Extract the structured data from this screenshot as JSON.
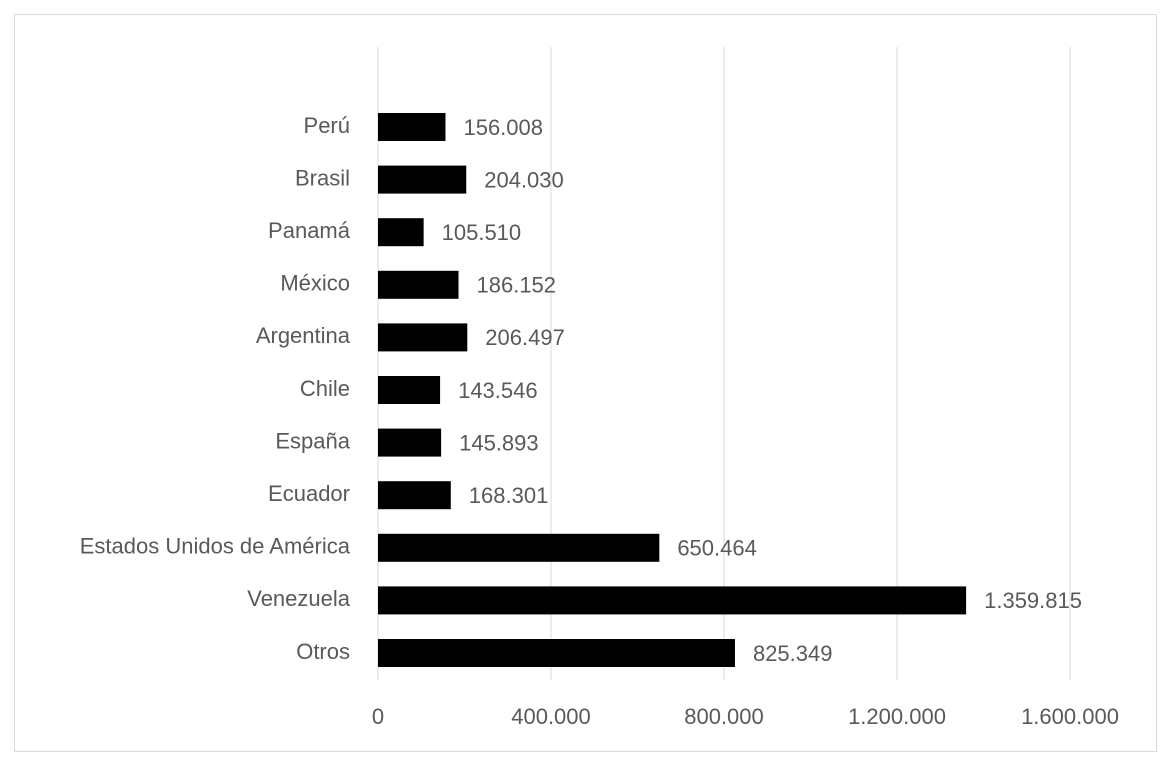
{
  "chart_data": {
    "type": "hbar",
    "categories": [
      "Perú",
      "Brasil",
      "Panamá",
      "México",
      "Argentina",
      "Chile",
      "España",
      "Ecuador",
      "Estados Unidos de América",
      "Venezuela",
      "Otros"
    ],
    "values": [
      156008,
      204030,
      105510,
      186152,
      206497,
      143546,
      145893,
      168301,
      650464,
      1359815,
      825349
    ],
    "value_labels": [
      "156.008",
      "204.030",
      "105.510",
      "186.152",
      "206.497",
      "143.546",
      "145.893",
      "168.301",
      "650.464",
      "1.359.815",
      "825.349"
    ],
    "color": "#000000",
    "xlim": [
      0,
      1600000
    ],
    "xticks": [
      0,
      {
        "value": 400000,
        "label": "400.000"
      },
      {
        "value": 800000,
        "label": "800.000"
      },
      {
        "value": 1200000,
        "label": "1.200.000"
      },
      {
        "value": 1600000,
        "label": "1.600.000"
      }
    ],
    "grid": true
  }
}
